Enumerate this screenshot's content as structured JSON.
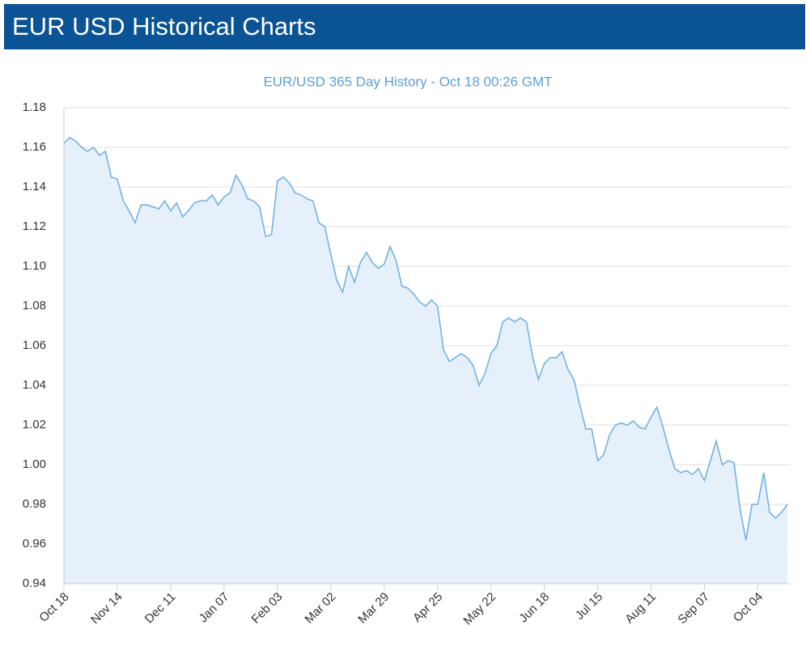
{
  "header": {
    "title": "EUR USD Historical Charts"
  },
  "chart_data": {
    "type": "area",
    "title": "EUR/USD 365 Day History - Oct 18 00:26 GMT",
    "color": "#6aaee2",
    "fill_color": "#e6f0fa",
    "grid": true,
    "categories": [
      "Oct 18",
      null,
      null,
      null,
      null,
      null,
      null,
      null,
      null,
      "Nov 14",
      null,
      null,
      null,
      null,
      null,
      null,
      null,
      null,
      "Dec 11",
      null,
      null,
      null,
      null,
      null,
      null,
      null,
      null,
      "Jan 07",
      null,
      null,
      null,
      null,
      null,
      null,
      null,
      null,
      "Feb 03",
      null,
      null,
      null,
      null,
      null,
      null,
      null,
      null,
      "Mar 02",
      null,
      null,
      null,
      null,
      null,
      null,
      null,
      null,
      "Mar 29",
      null,
      null,
      null,
      null,
      null,
      null,
      null,
      null,
      "Apr 25",
      null,
      null,
      null,
      null,
      null,
      null,
      null,
      null,
      "May 22",
      null,
      null,
      null,
      null,
      null,
      null,
      null,
      null,
      "Jun 18",
      null,
      null,
      null,
      null,
      null,
      null,
      null,
      null,
      "Jul 15",
      null,
      null,
      null,
      null,
      null,
      null,
      null,
      null,
      "Aug 11",
      null,
      null,
      null,
      null,
      null,
      null,
      null,
      null,
      "Sep 07",
      null,
      null,
      null,
      null,
      null,
      null,
      null,
      null,
      "Oct 04",
      null,
      null,
      null,
      null,
      null
    ],
    "values": [
      1.162,
      1.165,
      1.163,
      1.16,
      1.158,
      1.16,
      1.156,
      1.158,
      1.145,
      1.144,
      1.133,
      1.128,
      1.122,
      1.131,
      1.131,
      1.13,
      1.129,
      1.133,
      1.128,
      1.132,
      1.125,
      1.128,
      1.132,
      1.133,
      1.133,
      1.136,
      1.131,
      1.135,
      1.137,
      1.146,
      1.141,
      1.134,
      1.133,
      1.13,
      1.115,
      1.116,
      1.143,
      1.145,
      1.142,
      1.137,
      1.136,
      1.134,
      1.133,
      1.122,
      1.12,
      1.106,
      1.093,
      1.087,
      1.1,
      1.092,
      1.102,
      1.107,
      1.102,
      1.099,
      1.101,
      1.11,
      1.103,
      1.09,
      1.089,
      1.086,
      1.082,
      1.08,
      1.083,
      1.08,
      1.058,
      1.052,
      1.054,
      1.056,
      1.054,
      1.05,
      1.04,
      1.046,
      1.056,
      1.06,
      1.072,
      1.074,
      1.072,
      1.074,
      1.072,
      1.055,
      1.043,
      1.051,
      1.054,
      1.054,
      1.057,
      1.048,
      1.043,
      1.03,
      1.018,
      1.018,
      1.002,
      1.005,
      1.015,
      1.02,
      1.021,
      1.02,
      1.022,
      1.019,
      1.018,
      1.024,
      1.029,
      1.019,
      1.008,
      0.998,
      0.996,
      0.997,
      0.995,
      0.998,
      0.992,
      1.002,
      1.012,
      1.0,
      1.002,
      1.001,
      0.978,
      0.962,
      0.98,
      0.98,
      0.996,
      0.976,
      0.973,
      0.976,
      0.98
    ],
    "ylim": [
      0.94,
      1.18
    ],
    "yticks": [
      {
        "value": 0.94,
        "label": "0.94"
      },
      {
        "value": 0.96,
        "label": "0.96"
      },
      {
        "value": 0.98,
        "label": "0.98"
      },
      {
        "value": 1.0,
        "label": "1.00"
      },
      {
        "value": 1.02,
        "label": "1.02"
      },
      {
        "value": 1.04,
        "label": "1.04"
      },
      {
        "value": 1.06,
        "label": "1.06"
      },
      {
        "value": 1.08,
        "label": "1.08"
      },
      {
        "value": 1.1,
        "label": "1.10"
      },
      {
        "value": 1.12,
        "label": "1.12"
      },
      {
        "value": 1.14,
        "label": "1.14"
      },
      {
        "value": 1.16,
        "label": "1.16"
      },
      {
        "value": 1.18,
        "label": "1.18"
      }
    ]
  }
}
